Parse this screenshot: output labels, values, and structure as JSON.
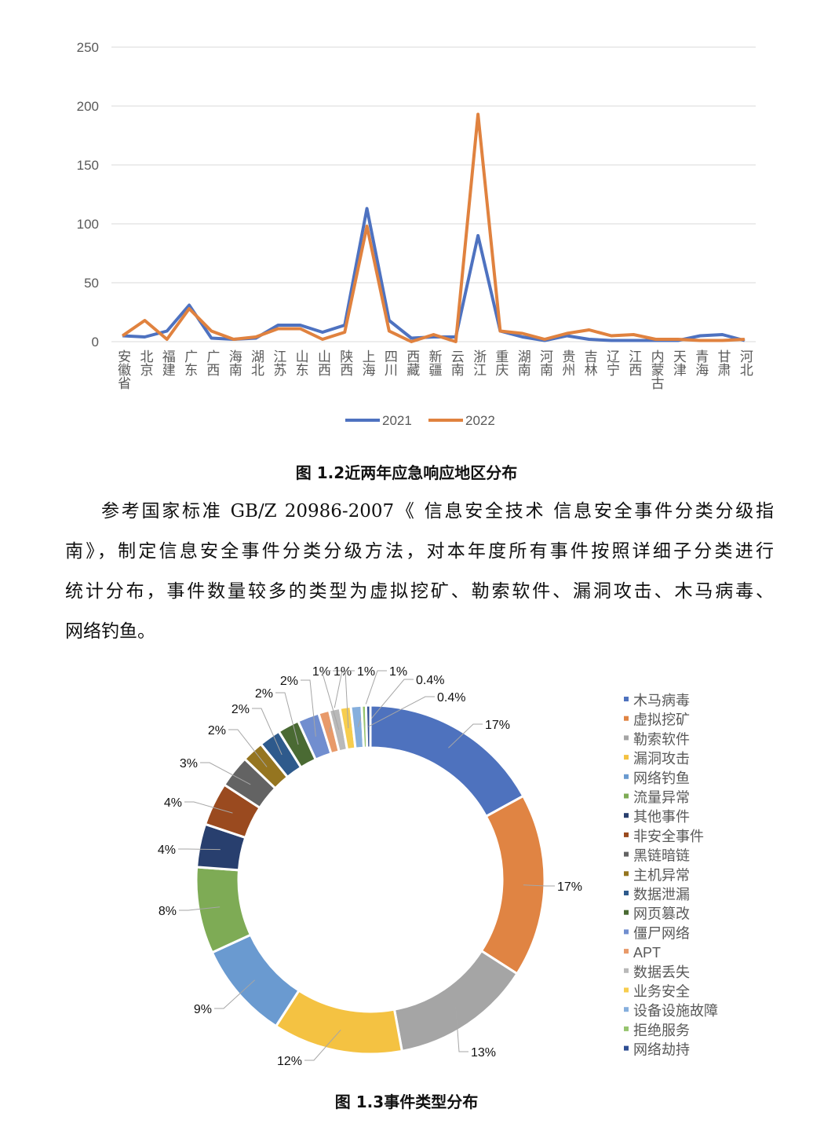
{
  "line_chart": {
    "chart_data": {
      "type": "line",
      "categories": [
        "安徽省",
        "北京",
        "福建",
        "广东",
        "广西",
        "海南",
        "湖北",
        "江苏",
        "山东",
        "山西",
        "陕西",
        "上海",
        "四川",
        "西藏",
        "新疆",
        "云南",
        "浙江",
        "重庆",
        "湖南",
        "河南",
        "贵州",
        "吉林",
        "辽宁",
        "江西",
        "内蒙古",
        "天津",
        "青海",
        "甘肃",
        "河北"
      ],
      "series": [
        {
          "name": "2021",
          "color": "#4E72C0",
          "values": [
            5,
            4,
            9,
            31,
            3,
            2,
            3,
            14,
            14,
            8,
            14,
            113,
            18,
            3,
            4,
            4,
            90,
            9,
            4,
            1,
            5,
            2,
            1,
            1,
            1,
            1,
            5,
            6,
            1
          ]
        },
        {
          "name": "2022",
          "color": "#E0823F",
          "values": [
            5,
            18,
            2,
            28,
            9,
            2,
            4,
            11,
            11,
            2,
            8,
            98,
            9,
            0,
            6,
            0,
            193,
            9,
            7,
            2,
            7,
            10,
            5,
            6,
            2,
            2,
            1,
            1,
            2
          ]
        }
      ],
      "yticks": [
        "0",
        "50",
        "100",
        "150",
        "200",
        "250"
      ],
      "ylim": [
        0,
        250
      ],
      "grid": true,
      "legend": "bottom"
    },
    "caption": "图 1.2近两年应急响应地区分布"
  },
  "paragraph_lines": [
    "参考国家标准 GB/Z 20986-2007《 信息安全技术 信息安全事件分类分级指",
    "南》，制定信息安全事件分类分级方法，对本年度所有事件按照详细子分类进行",
    "统计分布，事件数量较多的类型为虚拟挖矿、勒索软件、漏洞攻击、木马病毒、",
    "网络钓鱼。"
  ],
  "donut_chart": {
    "chart_data": {
      "type": "pie",
      "donut": true,
      "legend": "right",
      "slices": [
        {
          "label": "木马病毒",
          "value": 17,
          "text": "17%",
          "color": "#4E72BE"
        },
        {
          "label": "虚拟挖矿",
          "value": 17,
          "text": "17%",
          "color": "#E08443"
        },
        {
          "label": "勒索软件",
          "value": 13,
          "text": "13%",
          "color": "#A5A5A5"
        },
        {
          "label": "漏洞攻击",
          "value": 12,
          "text": "12%",
          "color": "#F4C242"
        },
        {
          "label": "网络钓鱼",
          "value": 9,
          "text": "9%",
          "color": "#6A9AD0"
        },
        {
          "label": "流量异常",
          "value": 8,
          "text": "8%",
          "color": "#7EAB55"
        },
        {
          "label": "其他事件",
          "value": 4,
          "text": "4%",
          "color": "#283F6E"
        },
        {
          "label": "非安全事件",
          "value": 4,
          "text": "4%",
          "color": "#9A4A1F"
        },
        {
          "label": "黑链暗链",
          "value": 3,
          "text": "3%",
          "color": "#636363"
        },
        {
          "label": "主机异常",
          "value": 2,
          "text": "2%",
          "color": "#957520"
        },
        {
          "label": "数据泄漏",
          "value": 2,
          "text": "2%",
          "color": "#2E5A8C"
        },
        {
          "label": "网页篡改",
          "value": 2,
          "text": "2%",
          "color": "#4A6A33"
        },
        {
          "label": "僵尸网络",
          "value": 2,
          "text": "2%",
          "color": "#718ECF"
        },
        {
          "label": "APT",
          "value": 1,
          "text": "1%",
          "color": "#E89A6A"
        },
        {
          "label": "数据丢失",
          "value": 1,
          "text": "1%",
          "color": "#B9B9B9"
        },
        {
          "label": "业务安全",
          "value": 1,
          "text": "1%",
          "color": "#F7CD4E"
        },
        {
          "label": "设备设施故障",
          "value": 1,
          "text": "1%",
          "color": "#86AFDD"
        },
        {
          "label": "拒绝服务",
          "value": 0.4,
          "text": "0.4%",
          "color": "#96C46E"
        },
        {
          "label": "网络劫持",
          "value": 0.4,
          "text": "0.4%",
          "color": "#2F4E93"
        }
      ]
    },
    "caption": "图 1.3事件类型分布"
  }
}
